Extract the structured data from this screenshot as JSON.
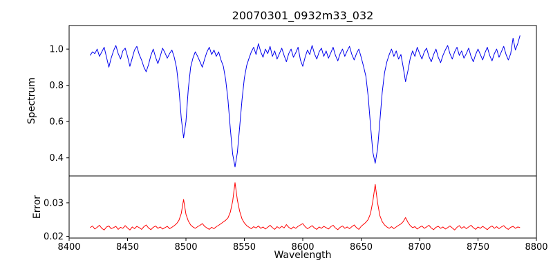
{
  "chart_data": [
    {
      "type": "line",
      "panel": "spectrum",
      "title": "20070301_0932m33_032",
      "ylabel": "Spectrum",
      "color": "#0000ee",
      "xlim": [
        8400,
        8800
      ],
      "ylim": [
        0.3,
        1.13
      ],
      "x_start": 8418,
      "x_step": 2,
      "y_ticks": [
        1.0,
        0.8,
        0.6,
        0.4
      ],
      "y_tick_labels": [
        "1.0",
        "0.8",
        "0.6",
        "0.4"
      ],
      "values": [
        0.965,
        0.985,
        0.975,
        1.0,
        0.96,
        0.985,
        1.01,
        0.955,
        0.9,
        0.95,
        0.99,
        1.02,
        0.975,
        0.945,
        0.99,
        1.005,
        0.96,
        0.905,
        0.95,
        0.995,
        1.015,
        0.97,
        0.94,
        0.9,
        0.875,
        0.915,
        0.965,
        1.0,
        0.955,
        0.92,
        0.96,
        1.005,
        0.98,
        0.95,
        0.975,
        0.995,
        0.955,
        0.895,
        0.78,
        0.62,
        0.51,
        0.6,
        0.78,
        0.9,
        0.95,
        0.985,
        0.96,
        0.93,
        0.9,
        0.945,
        0.985,
        1.01,
        0.97,
        0.995,
        0.96,
        0.985,
        0.94,
        0.905,
        0.83,
        0.72,
        0.56,
        0.42,
        0.35,
        0.43,
        0.57,
        0.72,
        0.84,
        0.91,
        0.95,
        0.985,
        1.01,
        0.97,
        1.03,
        0.985,
        0.955,
        1.0,
        0.975,
        1.015,
        0.96,
        0.99,
        0.945,
        0.975,
        1.005,
        0.965,
        0.93,
        0.975,
        1.0,
        0.955,
        0.98,
        1.01,
        0.94,
        0.905,
        0.955,
        0.995,
        0.97,
        1.02,
        0.975,
        0.945,
        0.985,
        1.005,
        0.96,
        0.99,
        0.95,
        0.98,
        1.01,
        0.965,
        0.935,
        0.975,
        1.0,
        0.96,
        0.99,
        1.015,
        0.97,
        0.94,
        0.975,
        1.0,
        0.955,
        0.905,
        0.85,
        0.74,
        0.58,
        0.43,
        0.37,
        0.45,
        0.6,
        0.76,
        0.87,
        0.93,
        0.97,
        1.0,
        0.96,
        0.99,
        0.945,
        0.97,
        0.9,
        0.82,
        0.88,
        0.95,
        0.99,
        0.96,
        1.01,
        0.975,
        0.945,
        0.985,
        1.005,
        0.96,
        0.93,
        0.97,
        1.0,
        0.955,
        0.925,
        0.965,
        0.995,
        1.02,
        0.975,
        0.945,
        0.985,
        1.01,
        0.965,
        0.99,
        0.95,
        0.975,
        1.005,
        0.96,
        0.93,
        0.97,
        1.0,
        0.97,
        0.94,
        0.98,
        1.01,
        0.965,
        0.935,
        0.975,
        1.0,
        0.955,
        0.985,
        1.015,
        0.97,
        0.94,
        0.975,
        1.06,
        0.995,
        1.03,
        1.075
      ]
    },
    {
      "type": "line",
      "panel": "error",
      "ylabel": "Error",
      "xlabel": "Wavelength",
      "color": "#ff0000",
      "xlim": [
        8400,
        8800
      ],
      "ylim": [
        0.0195,
        0.038
      ],
      "x_start": 8418,
      "x_step": 2,
      "y_ticks": [
        0.03,
        0.02
      ],
      "y_tick_labels": [
        "0.03",
        "0.02"
      ],
      "x_ticks": [
        8400,
        8450,
        8500,
        8550,
        8600,
        8650,
        8700,
        8750,
        8800
      ],
      "x_tick_labels": [
        "8400",
        "8450",
        "8500",
        "8550",
        "8600",
        "8650",
        "8700",
        "8750",
        "8800"
      ],
      "values": [
        0.0226,
        0.0231,
        0.0222,
        0.0227,
        0.0233,
        0.0224,
        0.0219,
        0.0228,
        0.0231,
        0.0223,
        0.0226,
        0.023,
        0.0221,
        0.0227,
        0.0224,
        0.0232,
        0.0225,
        0.0219,
        0.0228,
        0.0223,
        0.023,
        0.0226,
        0.0221,
        0.0229,
        0.0234,
        0.0225,
        0.022,
        0.0227,
        0.0231,
        0.0224,
        0.0228,
        0.0222,
        0.0226,
        0.023,
        0.0223,
        0.0227,
        0.0232,
        0.0238,
        0.0248,
        0.0268,
        0.031,
        0.0266,
        0.0246,
        0.0234,
        0.0228,
        0.0224,
        0.0229,
        0.0233,
        0.0238,
        0.023,
        0.0225,
        0.0221,
        0.0227,
        0.0223,
        0.0229,
        0.0233,
        0.0238,
        0.0243,
        0.0248,
        0.0255,
        0.0272,
        0.0305,
        0.036,
        0.0308,
        0.0275,
        0.0252,
        0.024,
        0.0232,
        0.0227,
        0.0223,
        0.0229,
        0.0225,
        0.0231,
        0.0224,
        0.0228,
        0.0222,
        0.0227,
        0.0233,
        0.0226,
        0.0221,
        0.0229,
        0.0224,
        0.023,
        0.0225,
        0.0235,
        0.0227,
        0.0222,
        0.0228,
        0.0224,
        0.023,
        0.0234,
        0.0238,
        0.0229,
        0.0223,
        0.0227,
        0.0232,
        0.0225,
        0.0221,
        0.0228,
        0.0224,
        0.023,
        0.0226,
        0.0222,
        0.0229,
        0.0233,
        0.0225,
        0.022,
        0.0227,
        0.0231,
        0.0224,
        0.0228,
        0.0223,
        0.0229,
        0.0234,
        0.0226,
        0.0221,
        0.023,
        0.0236,
        0.0242,
        0.025,
        0.0268,
        0.0305,
        0.0355,
        0.03,
        0.0262,
        0.0244,
        0.0234,
        0.0228,
        0.0224,
        0.0229,
        0.0223,
        0.0228,
        0.0233,
        0.0237,
        0.0244,
        0.0256,
        0.0242,
        0.0232,
        0.0226,
        0.0229,
        0.0222,
        0.0227,
        0.0231,
        0.0224,
        0.0228,
        0.0233,
        0.0225,
        0.022,
        0.0227,
        0.023,
        0.0224,
        0.0228,
        0.0222,
        0.0226,
        0.0231,
        0.0225,
        0.0219,
        0.0227,
        0.0232,
        0.0224,
        0.0229,
        0.0223,
        0.0228,
        0.0233,
        0.0226,
        0.0221,
        0.0228,
        0.0224,
        0.023,
        0.0225,
        0.022,
        0.0227,
        0.0231,
        0.0224,
        0.0229,
        0.0223,
        0.0228,
        0.0232,
        0.0225,
        0.0221,
        0.0227,
        0.023,
        0.0224,
        0.0228,
        0.0226
      ]
    }
  ]
}
